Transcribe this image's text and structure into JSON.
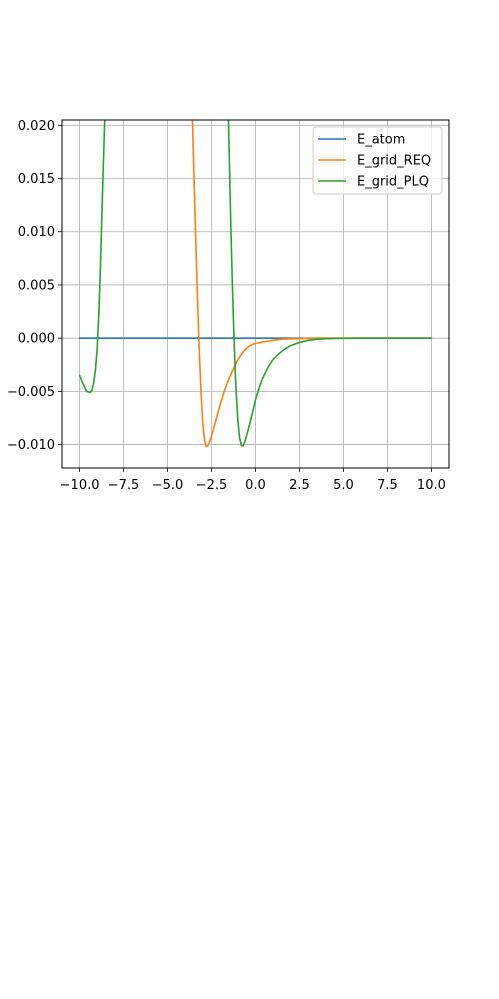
{
  "chart_data": {
    "type": "line",
    "title": "",
    "xlabel": "",
    "ylabel": "",
    "xlim": [
      -11.0,
      11.0
    ],
    "ylim": [
      -0.0122,
      0.0205
    ],
    "xticks": [
      -10.0,
      -7.5,
      -5.0,
      -2.5,
      0.0,
      2.5,
      5.0,
      7.5,
      10.0
    ],
    "xtick_labels": [
      "−10.0",
      "−7.5",
      "−5.0",
      "−2.5",
      "0.0",
      "2.5",
      "5.0",
      "7.5",
      "10.0"
    ],
    "yticks": [
      -0.01,
      -0.005,
      0.0,
      0.005,
      0.01,
      0.015,
      0.02
    ],
    "ytick_labels": [
      "−0.010",
      "−0.005",
      "0.000",
      "0.005",
      "0.010",
      "0.015",
      "0.020"
    ],
    "grid": true,
    "legend_position": "top-right",
    "series": [
      {
        "name": "E_atom",
        "color": "#1f77b4",
        "x": [
          -10.0,
          -5.0,
          0.0,
          5.0,
          10.0
        ],
        "y": [
          0.0,
          0.0,
          0.0,
          0.0,
          0.0
        ]
      },
      {
        "name": "E_grid_REQ",
        "color": "#ff7f0e",
        "x": [
          -3.6,
          -3.5,
          -3.4,
          -3.3,
          -3.2,
          -3.1,
          -3.0,
          -2.9,
          -2.8,
          -2.7,
          -2.6,
          -2.5,
          -2.4,
          -2.2,
          -2.0,
          -1.8,
          -1.6,
          -1.4,
          -1.2,
          -1.0,
          -0.8,
          -0.6,
          -0.4,
          -0.2,
          0.0,
          0.3,
          0.6,
          1.0,
          1.5,
          2.0,
          2.5,
          3.0,
          4.0,
          5.0,
          6.0,
          8.0,
          10.0
        ],
        "y": [
          0.0215,
          0.0154,
          0.0094,
          0.0038,
          -0.001,
          -0.005,
          -0.0079,
          -0.0096,
          -0.0102,
          -0.0101,
          -0.0097,
          -0.0092,
          -0.0086,
          -0.0074,
          -0.0062,
          -0.0051,
          -0.0042,
          -0.0034,
          -0.0027,
          -0.002,
          -0.0015,
          -0.0011,
          -0.0008,
          -0.0006,
          -0.0005,
          -0.0004,
          -0.0003,
          -0.0002,
          -0.0001,
          -6e-05,
          -3e-05,
          -1e-05,
          0.0,
          0.0,
          0.0,
          0.0,
          0.0
        ]
      },
      {
        "name": "E_grid_PLQ",
        "color": "#2ca02c",
        "x": [
          -10.0,
          -9.8,
          -9.6,
          -9.4,
          -9.3,
          -9.2,
          -9.1,
          -9.0,
          -8.9,
          -8.8,
          -8.7,
          -8.6,
          -8.55,
          -1.55,
          -1.5,
          -1.45,
          -1.4,
          -1.35,
          -1.3,
          -1.25,
          -1.2,
          -1.15,
          -1.1,
          -1.0,
          -0.9,
          -0.8,
          -0.7,
          -0.6,
          -0.5,
          -0.4,
          -0.2,
          0.0,
          0.2,
          0.4,
          0.6,
          0.8,
          1.0,
          1.3,
          1.6,
          2.0,
          2.5,
          3.0,
          3.5,
          4.0,
          5.0,
          6.0,
          8.0,
          10.0
        ],
        "y": [
          -0.0035,
          -0.0043,
          -0.005,
          -0.0051,
          -0.0049,
          -0.0042,
          -0.003,
          -0.001,
          0.0025,
          0.0075,
          0.0135,
          0.019,
          0.0215,
          0.0215,
          0.0178,
          0.014,
          0.0104,
          0.0072,
          0.0042,
          0.0015,
          -0.001,
          -0.0032,
          -0.005,
          -0.0078,
          -0.0094,
          -0.0101,
          -0.0101,
          -0.0097,
          -0.0091,
          -0.0085,
          -0.0072,
          -0.0058,
          -0.0047,
          -0.0038,
          -0.0031,
          -0.0025,
          -0.002,
          -0.0015,
          -0.0011,
          -0.0007,
          -0.0004,
          -0.0002,
          -0.0001,
          -5e-05,
          -2e-05,
          0.0,
          0.0,
          0.0
        ]
      }
    ]
  }
}
